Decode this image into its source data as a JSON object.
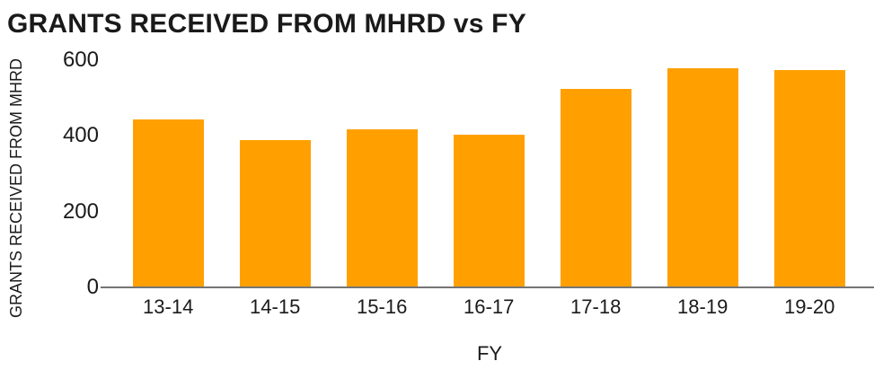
{
  "chart_data": {
    "type": "bar",
    "title": "GRANTS RECEIVED FROM MHRD vs FY",
    "xlabel": "FY",
    "ylabel": "GRANTS RECEIVED FROM MHRD",
    "categories": [
      "13-14",
      "14-15",
      "15-16",
      "16-17",
      "17-18",
      "18-19",
      "19-20"
    ],
    "values": [
      440,
      385,
      415,
      400,
      520,
      575,
      570
    ],
    "yticks": [
      0,
      200,
      400,
      600
    ],
    "ylim": [
      0,
      600
    ],
    "grid": false,
    "legend": false,
    "colors": {
      "bar": "#FFA000",
      "axis_line": "#757575",
      "text": "#1A1A1A",
      "background": "#FFFFFF"
    }
  }
}
